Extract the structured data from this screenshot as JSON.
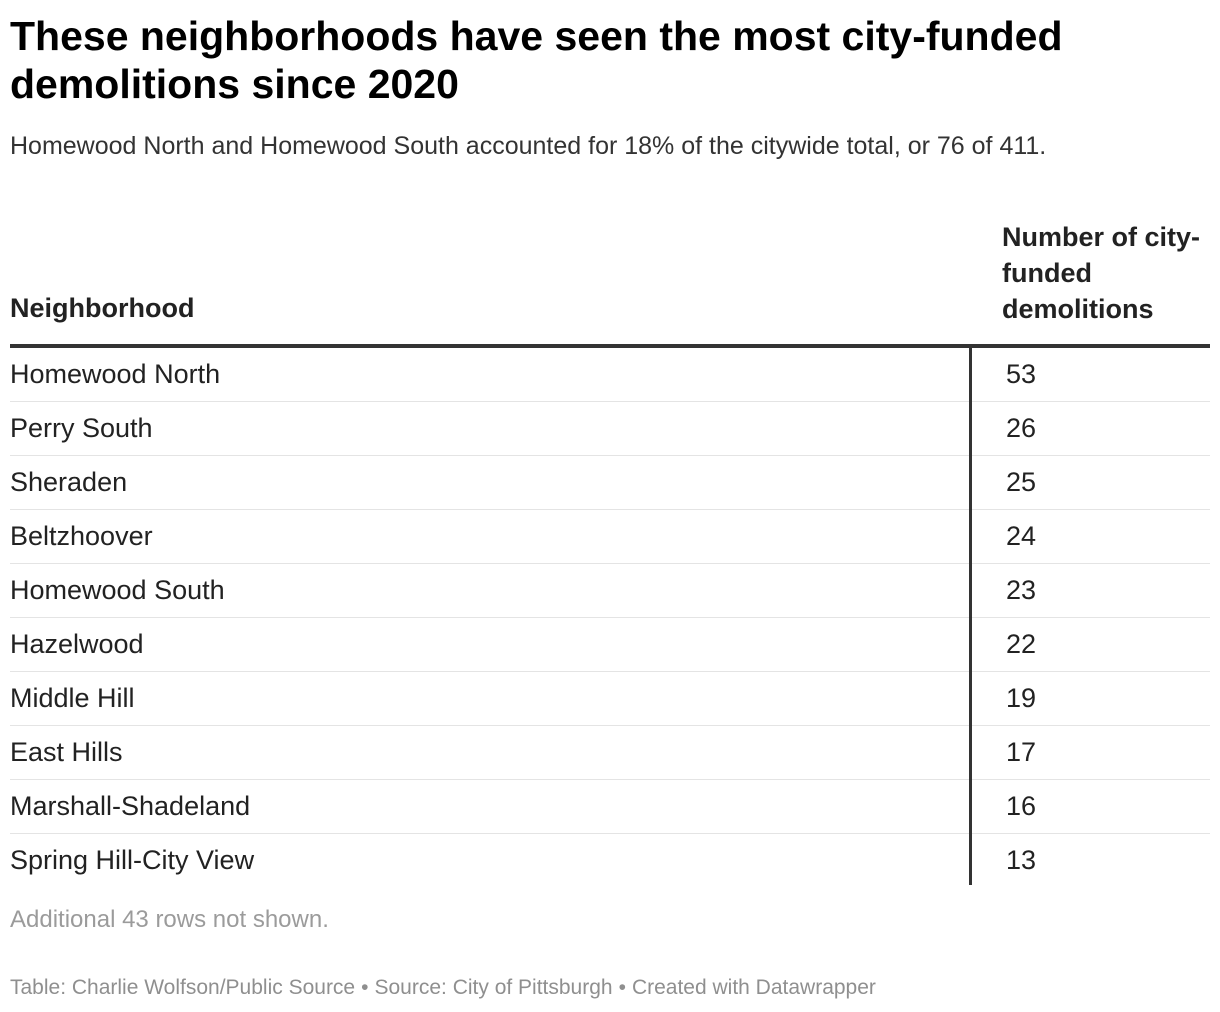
{
  "title": "These neighborhoods have seen the most city-funded demolitions since 2020",
  "subtitle": "Homewood North and Homewood South accounted for 18% of the citywide total, or 76 of 411.",
  "chart_data": {
    "type": "table",
    "title": "These neighborhoods have seen the most city-funded demolitions since 2020",
    "columns": [
      "Neighborhood",
      "Number of city-funded demolitions"
    ],
    "categories": [
      "Homewood North",
      "Perry South",
      "Sheraden",
      "Beltzhoover",
      "Homewood South",
      "Hazelwood",
      "Middle Hill",
      "East Hills",
      "Marshall-Shadeland",
      "Spring Hill-City View"
    ],
    "values": [
      53,
      26,
      25,
      24,
      23,
      22,
      19,
      17,
      16,
      13
    ]
  },
  "table": {
    "header_neighborhood": "Neighborhood",
    "header_count": "Number of city-funded demolitions"
  },
  "note": "Additional 43 rows not shown.",
  "footer": {
    "table_credit": "Table: Charlie Wolfson/Public Source",
    "separator": "•",
    "source": "Source: City of Pittsburgh",
    "created_with": "Created with Datawrapper"
  },
  "colors": {
    "text": "#222222",
    "rule": "#333333",
    "row_border": "#e4e4e4",
    "muted": "#9b9b9b"
  }
}
